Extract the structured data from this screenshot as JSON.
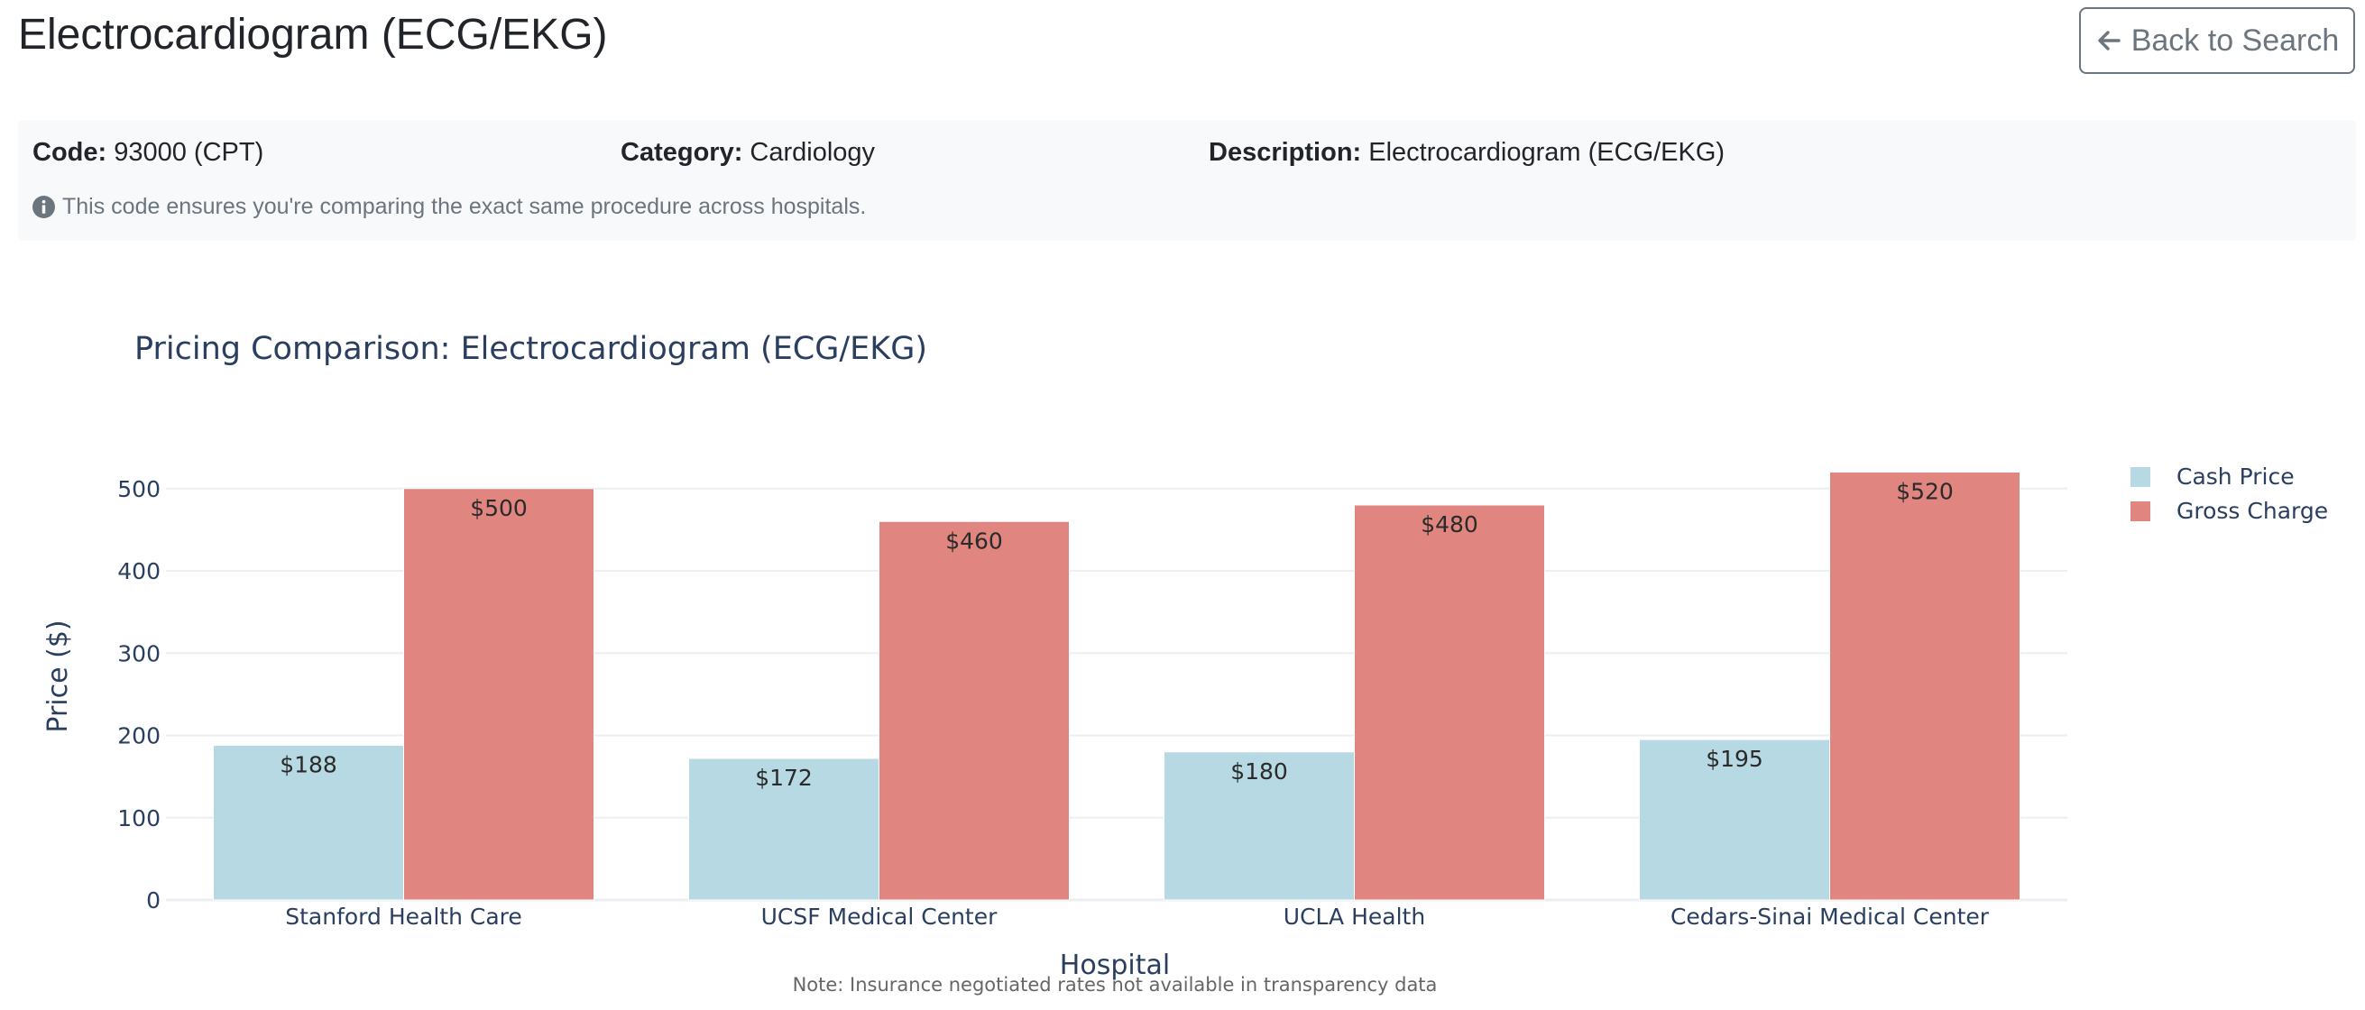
{
  "page": {
    "title": "Electrocardiogram (ECG/EKG)",
    "back_button_label": "Back to Search"
  },
  "info": {
    "code_label": "Code:",
    "code_value": "93000 (CPT)",
    "category_label": "Category:",
    "category_value": "Cardiology",
    "description_label": "Description:",
    "description_value": "Electrocardiogram (ECG/EKG)",
    "note": "This code ensures you're comparing the exact same procedure across hospitals."
  },
  "colors": {
    "cash_price": "#b7d9e4",
    "gross_charge": "#e18580",
    "chart_text": "#2a3f5f",
    "grid": "#ebeef2"
  },
  "chart_data": {
    "type": "bar",
    "title": "Pricing Comparison: Electrocardiogram (ECG/EKG)",
    "xlabel": "Hospital",
    "ylabel": "Price ($)",
    "categories": [
      "Stanford Health Care",
      "UCSF Medical Center",
      "UCLA Health",
      "Cedars-Sinai Medical Center"
    ],
    "series": [
      {
        "name": "Cash Price",
        "values": [
          188,
          172,
          180,
          195
        ],
        "labels": [
          "$188",
          "$172",
          "$180",
          "$195"
        ],
        "color": "#b7d9e4"
      },
      {
        "name": "Gross Charge",
        "values": [
          500,
          460,
          480,
          520
        ],
        "labels": [
          "$500",
          "$460",
          "$480",
          "$520"
        ],
        "color": "#e18580"
      }
    ],
    "ylim": [
      0,
      520
    ],
    "yticks": [
      0,
      100,
      200,
      300,
      400,
      500
    ],
    "grid": true,
    "legend": "top-right",
    "annotation": "Note: Insurance negotiated rates not available in transparency data"
  }
}
